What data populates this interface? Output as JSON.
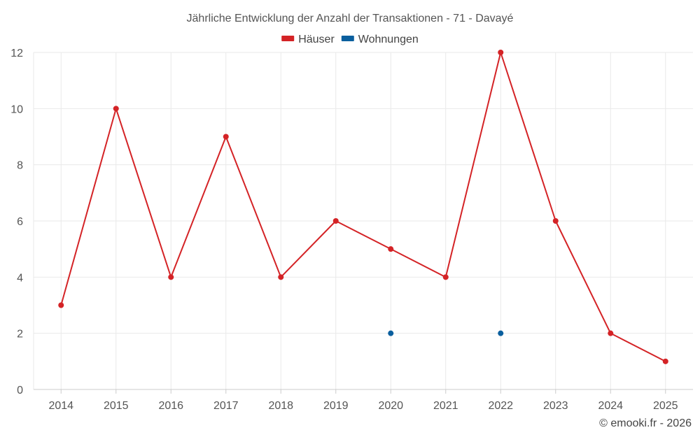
{
  "chart_data": {
    "type": "line",
    "title": "Jährliche Entwicklung der Anzahl der Transaktionen - 71 - Davayé",
    "xlabel": "",
    "ylabel": "",
    "categories": [
      "2014",
      "2015",
      "2016",
      "2017",
      "2018",
      "2019",
      "2020",
      "2021",
      "2022",
      "2023",
      "2024",
      "2025"
    ],
    "ylim": [
      0,
      12
    ],
    "yticks": [
      0,
      2,
      4,
      6,
      8,
      10,
      12
    ],
    "grid": true,
    "legend_position": "top-center",
    "series": [
      {
        "name": "Häuser",
        "color": "#d42326",
        "line": true,
        "values": [
          3,
          10,
          4,
          9,
          4,
          6,
          5,
          4,
          12,
          6,
          2,
          1
        ]
      },
      {
        "name": "Wohnungen",
        "color": "#0a5f9e",
        "line": false,
        "values": [
          null,
          null,
          null,
          null,
          null,
          null,
          2,
          null,
          2,
          null,
          null,
          null
        ]
      }
    ]
  },
  "credit": "© emooki.fr - 2026"
}
